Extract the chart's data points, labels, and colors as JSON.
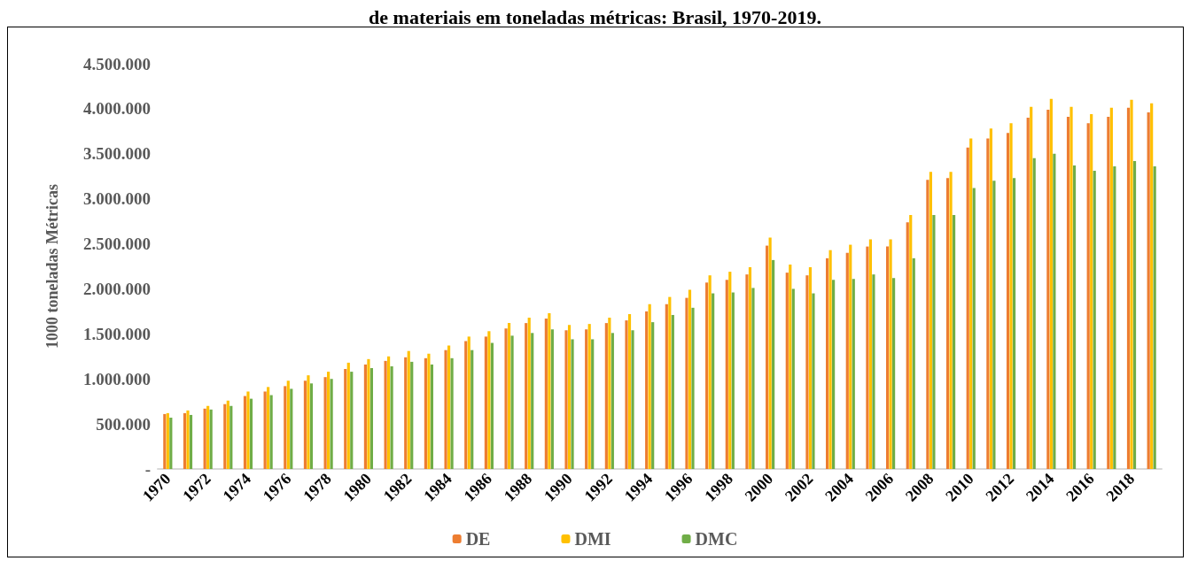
{
  "chart_data": {
    "type": "bar",
    "title": "de materiais em toneladas métricas: Brasil, 1970-2019.",
    "ylabel": "1000 toneladas Métricas",
    "categories": [
      "1970",
      null,
      "1972",
      null,
      "1974",
      null,
      "1976",
      null,
      "1978",
      null,
      "1980",
      null,
      "1982",
      null,
      "1984",
      null,
      "1986",
      null,
      "1988",
      null,
      "1990",
      null,
      "1992",
      null,
      "1994",
      null,
      "1996",
      null,
      "1998",
      null,
      "2000",
      null,
      "2002",
      null,
      "2004",
      null,
      "2006",
      null,
      "2008",
      null,
      "2010",
      null,
      "2012",
      null,
      "2014",
      null,
      "2016",
      null,
      "2018",
      null
    ],
    "series": [
      {
        "name": "DE",
        "color": "#ed7d31",
        "values": [
          610000,
          620000,
          670000,
          720000,
          810000,
          860000,
          920000,
          980000,
          1020000,
          1110000,
          1160000,
          1200000,
          1240000,
          1230000,
          1320000,
          1420000,
          1470000,
          1560000,
          1620000,
          1670000,
          1540000,
          1550000,
          1620000,
          1650000,
          1750000,
          1830000,
          1900000,
          2070000,
          2100000,
          2160000,
          2480000,
          2180000,
          2150000,
          2340000,
          2400000,
          2470000,
          2470000,
          2740000,
          3210000,
          3230000,
          3570000,
          3670000,
          3730000,
          3900000,
          3990000,
          3910000,
          3840000,
          3910000,
          4010000,
          3960000
        ]
      },
      {
        "name": "DMI",
        "color": "#ffc000",
        "values": [
          620000,
          650000,
          700000,
          760000,
          860000,
          910000,
          980000,
          1040000,
          1080000,
          1180000,
          1220000,
          1250000,
          1310000,
          1280000,
          1370000,
          1470000,
          1530000,
          1620000,
          1680000,
          1730000,
          1600000,
          1610000,
          1680000,
          1720000,
          1830000,
          1910000,
          1990000,
          2150000,
          2190000,
          2240000,
          2570000,
          2270000,
          2240000,
          2430000,
          2490000,
          2550000,
          2550000,
          2820000,
          3300000,
          3300000,
          3670000,
          3780000,
          3840000,
          4020000,
          4110000,
          4020000,
          3940000,
          4010000,
          4100000,
          4060000
        ]
      },
      {
        "name": "DMC",
        "color": "#70ad47",
        "values": [
          570000,
          600000,
          660000,
          700000,
          780000,
          820000,
          890000,
          950000,
          1000000,
          1080000,
          1120000,
          1140000,
          1190000,
          1160000,
          1230000,
          1320000,
          1400000,
          1480000,
          1510000,
          1550000,
          1440000,
          1440000,
          1510000,
          1540000,
          1630000,
          1710000,
          1790000,
          1950000,
          1960000,
          2010000,
          2320000,
          2000000,
          1950000,
          2100000,
          2110000,
          2160000,
          2120000,
          2340000,
          2820000,
          2820000,
          3120000,
          3200000,
          3230000,
          3450000,
          3500000,
          3370000,
          3310000,
          3360000,
          3420000,
          3360000
        ]
      }
    ],
    "ylim": [
      0,
      4500000
    ],
    "yticks": [
      {
        "value": 0,
        "label": "-"
      },
      {
        "value": 500000,
        "label": "500.000"
      },
      {
        "value": 1000000,
        "label": "1.000.000"
      },
      {
        "value": 1500000,
        "label": "1.500.000"
      },
      {
        "value": 2000000,
        "label": "2.000.000"
      },
      {
        "value": 2500000,
        "label": "2.500.000"
      },
      {
        "value": 3000000,
        "label": "3.000.000"
      },
      {
        "value": 3500000,
        "label": "3.500.000"
      },
      {
        "value": 4000000,
        "label": "4.000.000"
      },
      {
        "value": 4500000,
        "label": "4.500.000"
      }
    ],
    "grid": false,
    "legend": "bottom"
  }
}
